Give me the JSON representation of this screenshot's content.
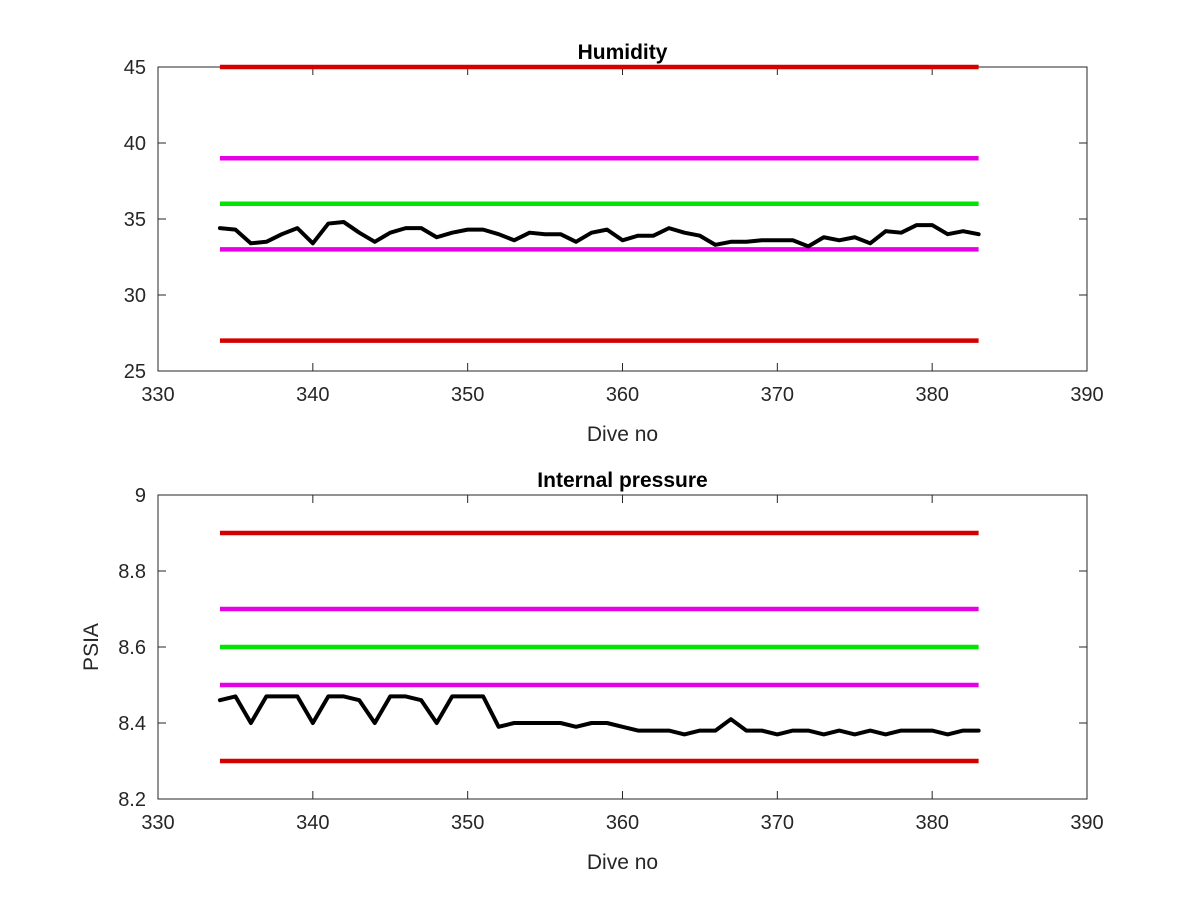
{
  "chart_data": [
    {
      "type": "line",
      "title": "Humidity",
      "xlabel": "Dive no",
      "ylabel": "",
      "xlim": [
        330,
        390
      ],
      "ylim": [
        25,
        45
      ],
      "xticks": [
        "330",
        "340",
        "350",
        "360",
        "370",
        "380",
        "390"
      ],
      "yticks": [
        "25",
        "30",
        "35",
        "40",
        "45"
      ],
      "grid": false,
      "legend": false,
      "thresholds": [
        {
          "value": 45,
          "x": [
            334,
            383
          ],
          "color": "#d40000"
        },
        {
          "value": 39,
          "x": [
            334,
            383
          ],
          "color": "#e600e6"
        },
        {
          "value": 36,
          "x": [
            334,
            383
          ],
          "color": "#00e600"
        },
        {
          "value": 33,
          "x": [
            334,
            383
          ],
          "color": "#e600e6"
        },
        {
          "value": 27,
          "x": [
            334,
            383
          ],
          "color": "#d40000"
        }
      ],
      "series": [
        {
          "color": "#000000",
          "x": [
            334,
            335,
            336,
            337,
            338,
            339,
            340,
            341,
            342,
            343,
            344,
            345,
            346,
            347,
            348,
            349,
            350,
            351,
            352,
            353,
            354,
            355,
            356,
            357,
            358,
            359,
            360,
            361,
            362,
            363,
            364,
            365,
            366,
            367,
            368,
            369,
            370,
            371,
            372,
            373,
            374,
            375,
            376,
            377,
            378,
            379,
            380,
            381,
            382,
            383
          ],
          "values": [
            34.4,
            34.3,
            33.4,
            33.5,
            34.0,
            34.4,
            33.4,
            34.7,
            34.8,
            34.1,
            33.5,
            34.1,
            34.4,
            34.4,
            33.8,
            34.1,
            34.3,
            34.3,
            34.0,
            33.6,
            34.1,
            34.0,
            34.0,
            33.5,
            34.1,
            34.3,
            33.6,
            33.9,
            33.9,
            34.4,
            34.1,
            33.9,
            33.3,
            33.5,
            33.5,
            33.6,
            33.6,
            33.6,
            33.2,
            33.8,
            33.6,
            33.8,
            33.4,
            34.2,
            34.1,
            34.6,
            34.6,
            34.0,
            34.2,
            34.0
          ]
        }
      ]
    },
    {
      "type": "line",
      "title": "Internal pressure",
      "xlabel": "Dive no",
      "ylabel": "PSIA",
      "xlim": [
        330,
        390
      ],
      "ylim": [
        8.2,
        9
      ],
      "xticks": [
        "330",
        "340",
        "350",
        "360",
        "370",
        "380",
        "390"
      ],
      "yticks": [
        "8.2",
        "8.4",
        "8.6",
        "8.8",
        "9"
      ],
      "grid": false,
      "legend": false,
      "thresholds": [
        {
          "value": 8.9,
          "x": [
            334,
            383
          ],
          "color": "#d40000"
        },
        {
          "value": 8.7,
          "x": [
            334,
            383
          ],
          "color": "#e600e6"
        },
        {
          "value": 8.6,
          "x": [
            334,
            383
          ],
          "color": "#00e600"
        },
        {
          "value": 8.5,
          "x": [
            334,
            383
          ],
          "color": "#e600e6"
        },
        {
          "value": 8.3,
          "x": [
            334,
            383
          ],
          "color": "#d40000"
        }
      ],
      "series": [
        {
          "color": "#000000",
          "x": [
            334,
            335,
            336,
            337,
            338,
            339,
            340,
            341,
            342,
            343,
            344,
            345,
            346,
            347,
            348,
            349,
            350,
            351,
            352,
            353,
            354,
            355,
            356,
            357,
            358,
            359,
            360,
            361,
            362,
            363,
            364,
            365,
            366,
            367,
            368,
            369,
            370,
            371,
            372,
            373,
            374,
            375,
            376,
            377,
            378,
            379,
            380,
            381,
            382,
            383
          ],
          "values": [
            8.46,
            8.47,
            8.4,
            8.47,
            8.47,
            8.47,
            8.4,
            8.47,
            8.47,
            8.46,
            8.4,
            8.47,
            8.47,
            8.46,
            8.4,
            8.47,
            8.47,
            8.47,
            8.39,
            8.4,
            8.4,
            8.4,
            8.4,
            8.39,
            8.4,
            8.4,
            8.39,
            8.38,
            8.38,
            8.38,
            8.37,
            8.38,
            8.38,
            8.41,
            8.38,
            8.38,
            8.37,
            8.38,
            8.38,
            8.37,
            8.38,
            8.37,
            8.38,
            8.37,
            8.38,
            8.38,
            8.38,
            8.37,
            8.38,
            8.38
          ]
        }
      ]
    }
  ]
}
